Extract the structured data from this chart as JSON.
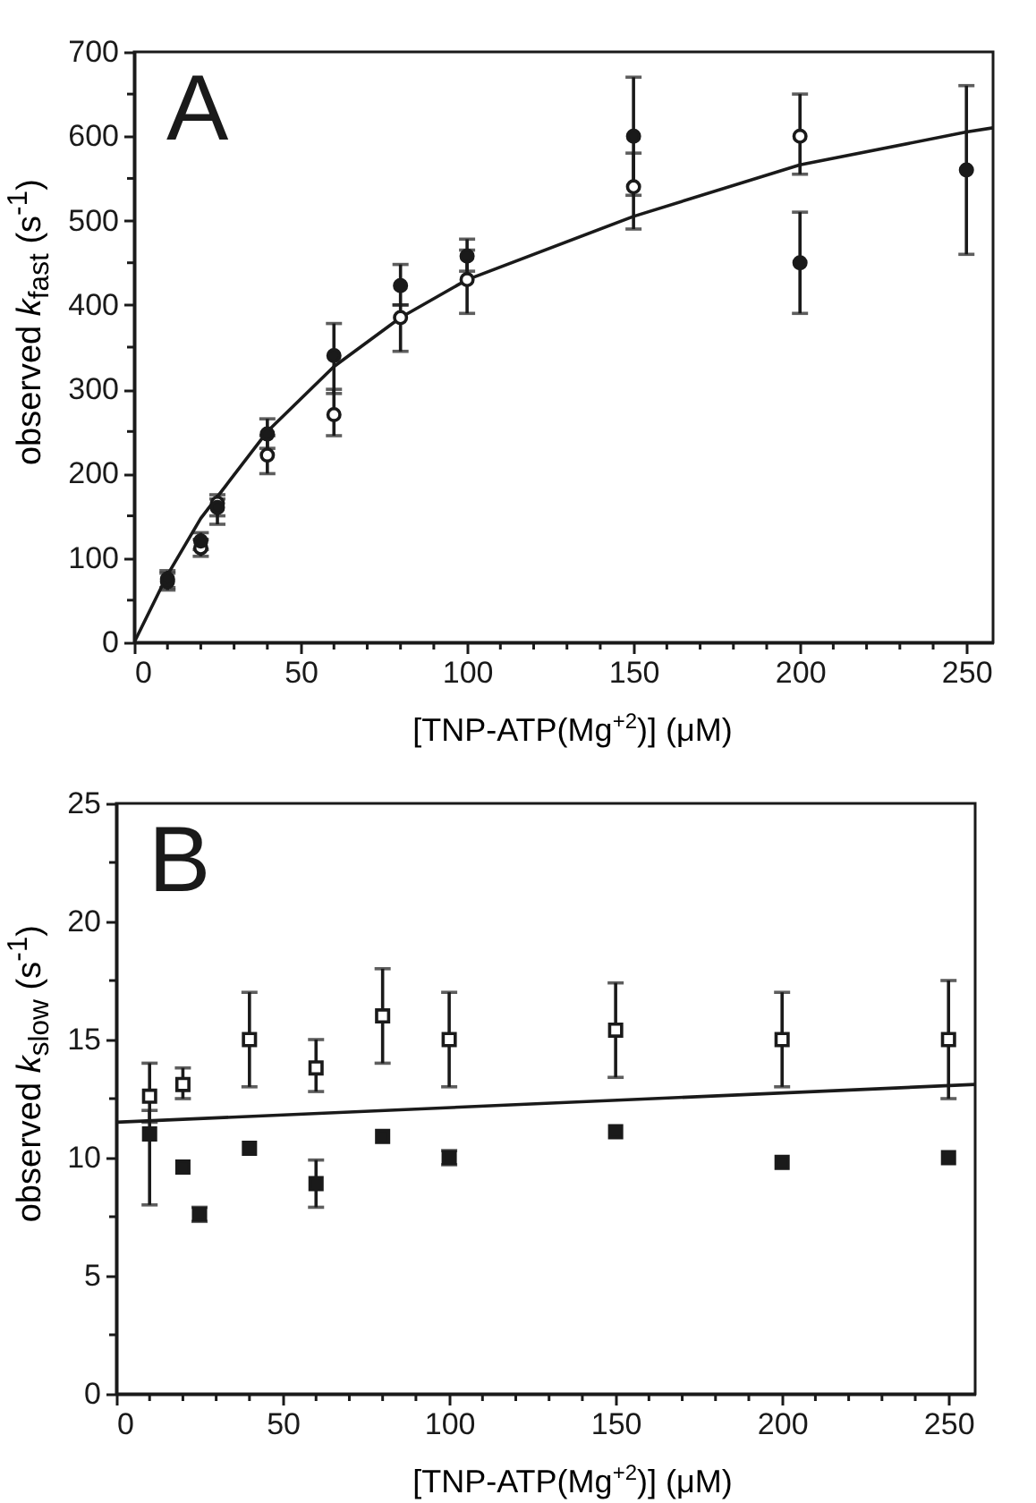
{
  "chart_data": [
    {
      "type": "scatter",
      "xlabel": "[TNP-ATP(Mg$^{+2}$)] (μM)",
      "ylabel": "observed k$_{fast}$ (s$^{-1}$)",
      "annotations": [
        "A"
      ],
      "xlim": [
        0,
        258
      ],
      "ylim": [
        0,
        700
      ],
      "xticks": [
        0,
        {
          "value": 10,
          "label": null
        },
        {
          "value": 20,
          "label": null
        },
        {
          "value": 30,
          "label": null
        },
        {
          "value": 40,
          "label": null
        },
        50,
        {
          "value": 60,
          "label": null
        },
        {
          "value": 70,
          "label": null
        },
        {
          "value": 80,
          "label": null
        },
        {
          "value": 90,
          "label": null
        },
        100,
        {
          "value": 110,
          "label": null
        },
        {
          "value": 120,
          "label": null
        },
        {
          "value": 130,
          "label": null
        },
        {
          "value": 140,
          "label": null
        },
        150,
        {
          "value": 160,
          "label": null
        },
        {
          "value": 170,
          "label": null
        },
        {
          "value": 180,
          "label": null
        },
        {
          "value": 190,
          "label": null
        },
        200,
        {
          "value": 210,
          "label": null
        },
        {
          "value": 220,
          "label": null
        },
        {
          "value": 230,
          "label": null
        },
        {
          "value": 240,
          "label": null
        },
        250
      ],
      "yticks": [
        0,
        {
          "value": 50,
          "label": null
        },
        100,
        {
          "value": 150,
          "label": null
        },
        200,
        {
          "value": 250,
          "label": null
        },
        300,
        {
          "value": 350,
          "label": null
        },
        400,
        {
          "value": 450,
          "label": null
        },
        500,
        {
          "value": 550,
          "label": null
        },
        600,
        {
          "value": 650,
          "label": null
        },
        700
      ],
      "series": [
        {
          "type": "scatter",
          "marker": "circle",
          "color": "#1a1a1a",
          "x": [
            10,
            20,
            25,
            40,
            60,
            80,
            100,
            150,
            200,
            250
          ],
          "values": [
            75,
            120,
            160,
            247,
            340,
            423,
            458,
            600,
            450,
            560
          ],
          "errors": [
            10,
            10,
            10,
            [
              230,
              265
            ],
            [
              295,
              378
            ],
            [
              400,
              448
            ],
            [
              440,
              478
            ],
            [
              530,
              670
            ],
            [
              390,
              510
            ],
            [
              460,
              660
            ]
          ]
        },
        {
          "type": "scatter",
          "marker": "circle",
          "color": "#1a1a1a",
          "x": [
            10,
            20,
            25,
            40,
            60,
            80,
            100,
            150,
            200
          ],
          "values": [
            72,
            112,
            165,
            222,
            270,
            385,
            430,
            540,
            600
          ],
          "errors": [
            10,
            10,
            [
              140,
              175
            ],
            [
              200,
              245
            ],
            [
              245,
              300
            ],
            [
              345,
              400
            ],
            [
              390,
              465
            ],
            [
              490,
              580
            ],
            [
              555,
              650
            ]
          ]
        },
        {
          "type": "line",
          "color": "#1a1a1a",
          "x": [
            0,
            10,
            20,
            40,
            60,
            80,
            100,
            150,
            200,
            250,
            258
          ],
          "values": [
            0,
            80,
            147,
            250,
            327,
            385,
            430,
            505,
            566,
            605,
            610
          ]
        }
      ]
    },
    {
      "type": "scatter",
      "xlabel": "[TNP-ATP(Mg$^{+2}$)] (μM)",
      "ylabel": "observed k$_{slow}$ (s$^{-1}$)",
      "annotations": [
        "B"
      ],
      "xlim": [
        0,
        258
      ],
      "ylim": [
        0,
        25
      ],
      "xticks": [
        0,
        {
          "value": 10,
          "label": null
        },
        {
          "value": 20,
          "label": null
        },
        {
          "value": 30,
          "label": null
        },
        {
          "value": 40,
          "label": null
        },
        50,
        {
          "value": 60,
          "label": null
        },
        {
          "value": 70,
          "label": null
        },
        {
          "value": 80,
          "label": null
        },
        {
          "value": 90,
          "label": null
        },
        100,
        {
          "value": 110,
          "label": null
        },
        {
          "value": 120,
          "label": null
        },
        {
          "value": 130,
          "label": null
        },
        {
          "value": 140,
          "label": null
        },
        150,
        {
          "value": 160,
          "label": null
        },
        {
          "value": 170,
          "label": null
        },
        {
          "value": 180,
          "label": null
        },
        {
          "value": 190,
          "label": null
        },
        200,
        {
          "value": 210,
          "label": null
        },
        {
          "value": 220,
          "label": null
        },
        {
          "value": 230,
          "label": null
        },
        {
          "value": 240,
          "label": null
        },
        250
      ],
      "yticks": [
        0,
        {
          "value": 2.5,
          "label": null
        },
        5,
        {
          "value": 7.5,
          "label": null
        },
        10,
        {
          "value": 12.5,
          "label": null
        },
        15,
        {
          "value": 17.5,
          "label": null
        },
        20,
        {
          "value": 22.5,
          "label": null
        },
        25
      ],
      "series": [
        {
          "type": "scatter",
          "marker": "square",
          "color": "#1a1a1a",
          "x": [
            10,
            20,
            25,
            40,
            60,
            80,
            100,
            150,
            200,
            250
          ],
          "values": [
            11,
            9.6,
            7.6,
            10.4,
            8.9,
            10.9,
            10,
            11.1,
            9.8,
            10
          ],
          "errors": [
            [
              8,
              12
            ],
            null,
            [
              7.3,
              7.9
            ],
            null,
            [
              7.9,
              9.9
            ],
            null,
            [
              9.7,
              10.3
            ],
            null,
            null,
            null
          ]
        },
        {
          "type": "scatter",
          "marker": "square",
          "color": "#1a1a1a",
          "x": [
            10,
            20,
            40,
            60,
            80,
            100,
            150,
            200,
            250
          ],
          "values": [
            12.6,
            13.1,
            15,
            13.8,
            16,
            15,
            15.4,
            15,
            15
          ],
          "errors": [
            [
              11.5,
              14
            ],
            [
              12.5,
              13.8
            ],
            [
              13,
              17
            ],
            [
              12.8,
              15
            ],
            [
              14,
              18
            ],
            [
              13,
              17
            ],
            [
              13.4,
              17.4
            ],
            [
              13,
              17
            ],
            [
              12.5,
              17.5
            ]
          ]
        },
        {
          "type": "line",
          "color": "#1a1a1a",
          "x": [
            0,
            258
          ],
          "values": [
            11.5,
            13.1
          ]
        }
      ]
    }
  ]
}
